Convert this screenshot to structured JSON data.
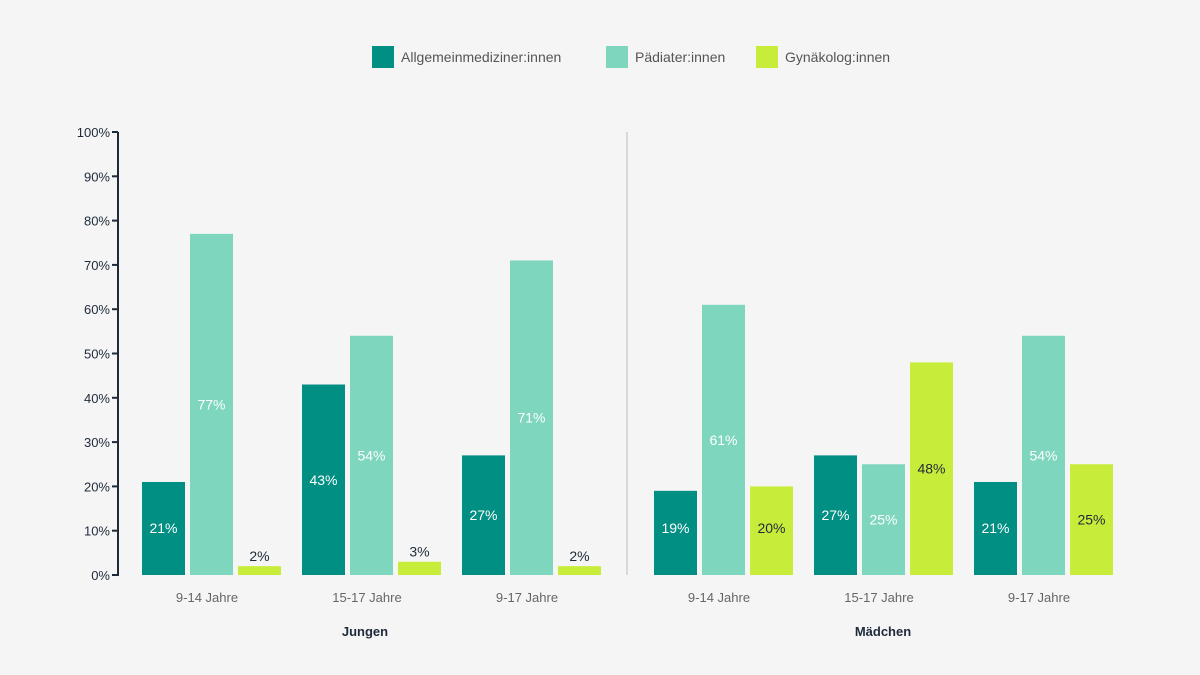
{
  "chart_data": {
    "type": "bar",
    "title": "",
    "ylim": [
      0,
      100
    ],
    "y_ticks": [
      "0%",
      "10%",
      "20%",
      "30%",
      "40%",
      "50%",
      "60%",
      "70%",
      "80%",
      "90%",
      "100%"
    ],
    "y_tick_values": [
      0,
      10,
      20,
      30,
      40,
      50,
      60,
      70,
      80,
      90,
      100
    ],
    "legend_position": "top-center",
    "series_names": [
      "Allgemeinmediziner:innen",
      "Pädiater:innen",
      "Gynäkolog:innen"
    ],
    "colors": [
      "#008f82",
      "#7dd6bd",
      "#c8ec3a"
    ],
    "label_colors": [
      "#ffffff",
      "#ffffff",
      "#1e2a3a"
    ],
    "panels": [
      {
        "group": "Jungen",
        "categories": [
          "9-14 Jahre",
          "15-17 Jahre",
          "9-17 Jahre"
        ],
        "series": [
          {
            "name": "Allgemeinmediziner:innen",
            "values": [
              21,
              43,
              27
            ],
            "labels": [
              "21%",
              "43%",
              "27%"
            ]
          },
          {
            "name": "Pädiater:innen",
            "values": [
              77,
              54,
              71
            ],
            "labels": [
              "77%",
              "54%",
              "71%"
            ]
          },
          {
            "name": "Gynäkolog:innen",
            "values": [
              2,
              3,
              2
            ],
            "labels": [
              "2%",
              "3%",
              "2%"
            ]
          }
        ]
      },
      {
        "group": "Mädchen",
        "categories": [
          "9-14 Jahre",
          "15-17 Jahre",
          "9-17 Jahre"
        ],
        "series": [
          {
            "name": "Allgemeinmediziner:innen",
            "values": [
              19,
              27,
              21
            ],
            "labels": [
              "19%",
              "27%",
              "21%"
            ]
          },
          {
            "name": "Pädiater:innen",
            "values": [
              61,
              25,
              54
            ],
            "labels": [
              "61%",
              "25%",
              "54%"
            ]
          },
          {
            "name": "Gynäkolog:innen",
            "values": [
              20,
              48,
              25
            ],
            "labels": [
              "20%",
              "48%",
              "25%"
            ]
          }
        ]
      }
    ]
  }
}
